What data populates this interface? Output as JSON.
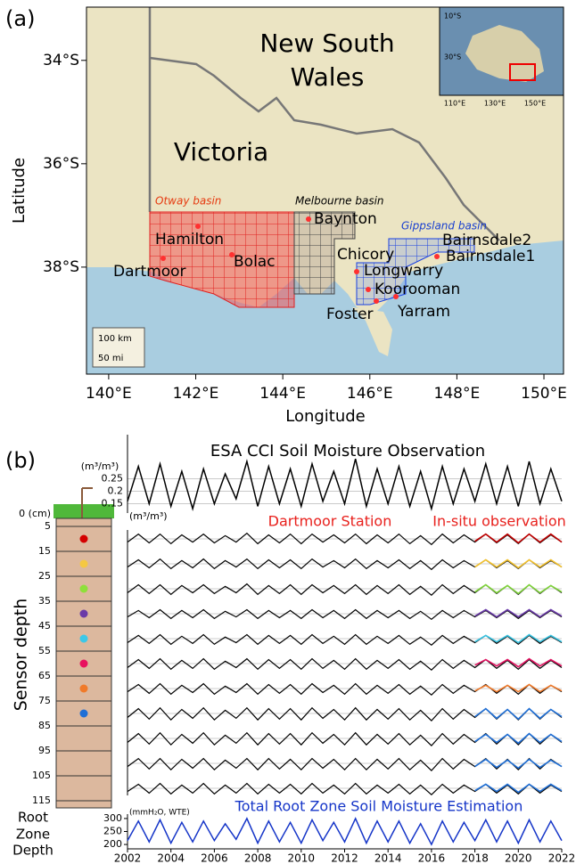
{
  "panel_a": {
    "label": "(a)",
    "xlabel": "Longitude",
    "ylabel": "Latitude",
    "xlim": [
      139.49,
      150.45
    ],
    "ylim": [
      -32.97,
      -40.07
    ],
    "xticks": [
      {
        "value": 140,
        "label": "140°E"
      },
      {
        "value": 142,
        "label": "142°E"
      },
      {
        "value": 144,
        "label": "144°E"
      },
      {
        "value": 146,
        "label": "146°E"
      },
      {
        "value": 148,
        "label": "148°E"
      },
      {
        "value": 150,
        "label": "150°E"
      }
    ],
    "yticks": [
      {
        "value": -34,
        "label": "34°S"
      },
      {
        "value": -36,
        "label": "36°S"
      },
      {
        "value": -38,
        "label": "38°S"
      }
    ],
    "nsw_label": [
      "New South",
      "Wales"
    ],
    "victoria_label": "Victoria",
    "basins": [
      "Otway basin",
      "Melbourne basin",
      "Gippsland basin"
    ],
    "stations": [
      "Hamilton",
      "Bolac",
      "Dartmoor",
      "Baynton",
      "Chicory",
      "Longwarry",
      "Koorooman",
      "Foster",
      "Yarram",
      "Bairnsdale2",
      "Bairnsdale1"
    ],
    "scale_bar": [
      "100 km",
      "50 mi"
    ],
    "inset_yticks": [
      "10°S",
      "30°S"
    ],
    "inset_xticks": [
      "110°E",
      "130°E",
      "150°E"
    ]
  },
  "panel_b": {
    "label": "(b)",
    "title": "ESA CCI Soil Moisture Observation",
    "esa_unit": "(m³/m³)",
    "xlim": [
      2002,
      2022
    ],
    "xticks": [
      2002,
      2004,
      2006,
      2008,
      2010,
      2012,
      2014,
      2016,
      2018,
      2020,
      2022
    ],
    "x": [
      2002,
      2002.5,
      2003,
      2003.5,
      2004,
      2004.5,
      2005,
      2005.5,
      2006,
      2006.5,
      2007,
      2007.5,
      2008,
      2008.5,
      2009,
      2009.5,
      2010,
      2010.5,
      2011,
      2011.5,
      2012,
      2012.5,
      2013,
      2013.5,
      2014,
      2014.5,
      2015,
      2015.5,
      2016,
      2016.5,
      2017,
      2017.5,
      2018,
      2018.5,
      2019,
      2019.5,
      2020,
      2020.5,
      2021,
      2021.5,
      2022
    ],
    "esa": {
      "ylim": [
        0.12,
        0.42
      ],
      "yticks": [
        0.15,
        0.2,
        0.25
      ],
      "color": "#000000",
      "values": [
        0.16,
        0.3,
        0.15,
        0.31,
        0.14,
        0.28,
        0.13,
        0.29,
        0.15,
        0.27,
        0.17,
        0.32,
        0.14,
        0.3,
        0.15,
        0.29,
        0.14,
        0.31,
        0.16,
        0.28,
        0.15,
        0.33,
        0.14,
        0.29,
        0.15,
        0.3,
        0.14,
        0.28,
        0.13,
        0.3,
        0.15,
        0.29,
        0.16,
        0.31,
        0.15,
        0.3,
        0.14,
        0.32,
        0.15,
        0.29,
        0.16
      ]
    },
    "station": "Dartmoor Station",
    "insitu_label": "In-situ observation",
    "rows_unit": "(m³/m³)",
    "ylabel": "Sensor depth",
    "depth_ticks": [
      {
        "value": 0,
        "label": "0 (cm)"
      },
      5,
      15,
      25,
      35,
      45,
      55,
      65,
      75,
      85,
      95,
      105,
      115
    ],
    "sensor_colors": [
      "#d40000",
      "#f5c842",
      "#8ee03a",
      "#6a3aa8",
      "#3cc8e8",
      "#e8115f",
      "#f07a2a",
      "#1f6fd6"
    ],
    "rows_ylim": [
      0,
      1
    ],
    "insitu_x": [
      2018,
      2018.5,
      2019,
      2019.5,
      2020,
      2020.5,
      2021,
      2021.5,
      2022
    ],
    "rows": [
      {
        "color": "#c00000",
        "values": [
          0.3,
          0.8,
          0.25,
          0.8,
          0.2,
          0.75,
          0.3,
          0.8,
          0.25,
          0.7,
          0.3,
          0.85,
          0.2,
          0.75,
          0.25,
          0.8,
          0.2,
          0.8,
          0.3,
          0.75,
          0.25,
          0.8,
          0.2,
          0.75,
          0.25,
          0.8,
          0.2,
          0.7,
          0.15,
          0.8,
          0.25,
          0.75,
          0.3,
          0.8,
          0.25,
          0.75,
          0.2,
          0.8,
          0.25,
          0.75,
          0.3
        ],
        "insitu": [
          0.35,
          0.8,
          0.3,
          0.8,
          0.25,
          0.8,
          0.3,
          0.8,
          0.3
        ]
      },
      {
        "color": "#f2c12e",
        "values": [
          0.3,
          0.75,
          0.25,
          0.8,
          0.2,
          0.7,
          0.25,
          0.8,
          0.2,
          0.7,
          0.3,
          0.8,
          0.2,
          0.75,
          0.25,
          0.75,
          0.2,
          0.8,
          0.3,
          0.7,
          0.25,
          0.8,
          0.2,
          0.7,
          0.25,
          0.75,
          0.2,
          0.7,
          0.15,
          0.75,
          0.25,
          0.7,
          0.3,
          0.75,
          0.25,
          0.7,
          0.2,
          0.75,
          0.25,
          0.7,
          0.3
        ],
        "insitu": [
          0.3,
          0.75,
          0.3,
          0.75,
          0.25,
          0.75,
          0.3,
          0.75,
          0.3
        ]
      },
      {
        "color": "#7fd33a",
        "values": [
          0.25,
          0.75,
          0.2,
          0.75,
          0.15,
          0.7,
          0.25,
          0.75,
          0.2,
          0.65,
          0.25,
          0.8,
          0.15,
          0.7,
          0.2,
          0.75,
          0.15,
          0.75,
          0.25,
          0.7,
          0.2,
          0.75,
          0.15,
          0.7,
          0.2,
          0.75,
          0.15,
          0.65,
          0.1,
          0.75,
          0.2,
          0.7,
          0.25,
          0.75,
          0.2,
          0.7,
          0.15,
          0.75,
          0.2,
          0.7,
          0.25
        ],
        "insitu": [
          0.3,
          0.75,
          0.25,
          0.7,
          0.2,
          0.75,
          0.25,
          0.7,
          0.3
        ]
      },
      {
        "color": "#6a3aa8",
        "values": [
          0.3,
          0.7,
          0.25,
          0.75,
          0.2,
          0.7,
          0.25,
          0.75,
          0.2,
          0.65,
          0.3,
          0.75,
          0.2,
          0.7,
          0.25,
          0.7,
          0.2,
          0.75,
          0.25,
          0.7,
          0.2,
          0.75,
          0.2,
          0.7,
          0.25,
          0.7,
          0.2,
          0.65,
          0.15,
          0.7,
          0.25,
          0.7,
          0.3,
          0.7,
          0.25,
          0.7,
          0.2,
          0.7,
          0.25,
          0.7,
          0.3
        ],
        "insitu": [
          0.35,
          0.75,
          0.3,
          0.75,
          0.3,
          0.75,
          0.3,
          0.75,
          0.35
        ]
      },
      {
        "color": "#37c2e0",
        "values": [
          0.25,
          0.7,
          0.2,
          0.75,
          0.15,
          0.65,
          0.2,
          0.75,
          0.15,
          0.6,
          0.25,
          0.75,
          0.15,
          0.7,
          0.2,
          0.7,
          0.15,
          0.75,
          0.2,
          0.65,
          0.15,
          0.75,
          0.15,
          0.65,
          0.2,
          0.7,
          0.15,
          0.6,
          0.1,
          0.7,
          0.2,
          0.65,
          0.25,
          0.7,
          0.2,
          0.65,
          0.15,
          0.7,
          0.2,
          0.65,
          0.25
        ],
        "insitu": [
          0.3,
          0.7,
          0.3,
          0.7,
          0.25,
          0.75,
          0.3,
          0.7,
          0.3
        ]
      },
      {
        "color": "#e0115f",
        "values": [
          0.25,
          0.75,
          0.2,
          0.8,
          0.15,
          0.7,
          0.2,
          0.8,
          0.15,
          0.65,
          0.25,
          0.8,
          0.15,
          0.75,
          0.2,
          0.75,
          0.15,
          0.8,
          0.2,
          0.7,
          0.15,
          0.8,
          0.15,
          0.7,
          0.2,
          0.75,
          0.15,
          0.65,
          0.1,
          0.75,
          0.2,
          0.7,
          0.25,
          0.75,
          0.2,
          0.7,
          0.15,
          0.75,
          0.2,
          0.7,
          0.25
        ],
        "insitu": [
          0.4,
          0.75,
          0.35,
          0.75,
          0.3,
          0.8,
          0.35,
          0.75,
          0.35
        ]
      },
      {
        "color": "#f07a2a",
        "values": [
          0.3,
          0.75,
          0.2,
          0.8,
          0.15,
          0.7,
          0.25,
          0.8,
          0.15,
          0.65,
          0.25,
          0.8,
          0.15,
          0.75,
          0.2,
          0.75,
          0.15,
          0.8,
          0.25,
          0.7,
          0.15,
          0.8,
          0.15,
          0.7,
          0.2,
          0.75,
          0.15,
          0.65,
          0.1,
          0.75,
          0.2,
          0.7,
          0.3,
          0.75,
          0.2,
          0.7,
          0.15,
          0.75,
          0.2,
          0.7,
          0.3
        ],
        "insitu": [
          0.35,
          0.7,
          0.3,
          0.7,
          0.3,
          0.75,
          0.3,
          0.7,
          0.35
        ]
      },
      {
        "color": "#1f6fd6",
        "values": [
          0.25,
          0.8,
          0.15,
          0.85,
          0.1,
          0.75,
          0.2,
          0.85,
          0.1,
          0.7,
          0.2,
          0.85,
          0.1,
          0.8,
          0.15,
          0.8,
          0.1,
          0.85,
          0.2,
          0.75,
          0.1,
          0.85,
          0.1,
          0.75,
          0.15,
          0.8,
          0.1,
          0.7,
          0.05,
          0.8,
          0.15,
          0.75,
          0.25,
          0.8,
          0.15,
          0.75,
          0.1,
          0.8,
          0.15,
          0.75,
          0.25
        ],
        "insitu": [
          0.3,
          0.8,
          0.2,
          0.75,
          0.15,
          0.8,
          0.2,
          0.75,
          0.3
        ]
      },
      {
        "color": "#1f6fd6",
        "values": [
          0.25,
          0.8,
          0.15,
          0.85,
          0.1,
          0.75,
          0.2,
          0.85,
          0.1,
          0.7,
          0.2,
          0.85,
          0.1,
          0.8,
          0.15,
          0.8,
          0.1,
          0.85,
          0.2,
          0.75,
          0.1,
          0.85,
          0.1,
          0.75,
          0.15,
          0.8,
          0.1,
          0.7,
          0.05,
          0.8,
          0.15,
          0.75,
          0.25,
          0.8,
          0.15,
          0.75,
          0.1,
          0.8,
          0.15,
          0.75,
          0.25
        ],
        "insitu": [
          0.3,
          0.75,
          0.25,
          0.75,
          0.2,
          0.8,
          0.25,
          0.75,
          0.3
        ]
      },
      {
        "color": "#1f6fd6",
        "values": [
          0.3,
          0.8,
          0.15,
          0.8,
          0.1,
          0.75,
          0.2,
          0.8,
          0.1,
          0.7,
          0.2,
          0.8,
          0.1,
          0.8,
          0.15,
          0.75,
          0.1,
          0.8,
          0.2,
          0.75,
          0.1,
          0.8,
          0.1,
          0.75,
          0.15,
          0.8,
          0.1,
          0.7,
          0.05,
          0.8,
          0.15,
          0.75,
          0.3,
          0.8,
          0.15,
          0.75,
          0.1,
          0.8,
          0.15,
          0.75,
          0.3
        ],
        "insitu": [
          0.3,
          0.75,
          0.25,
          0.7,
          0.2,
          0.75,
          0.25,
          0.7,
          0.3
        ]
      },
      {
        "color": "#1f6fd6",
        "values": [
          0.3,
          0.75,
          0.2,
          0.8,
          0.15,
          0.7,
          0.2,
          0.8,
          0.15,
          0.7,
          0.2,
          0.8,
          0.15,
          0.75,
          0.2,
          0.75,
          0.15,
          0.8,
          0.2,
          0.7,
          0.15,
          0.8,
          0.15,
          0.7,
          0.2,
          0.75,
          0.15,
          0.7,
          0.1,
          0.75,
          0.2,
          0.7,
          0.3,
          0.75,
          0.2,
          0.7,
          0.15,
          0.75,
          0.2,
          0.7,
          0.3
        ],
        "insitu": [
          0.35,
          0.75,
          0.3,
          0.75,
          0.25,
          0.75,
          0.3,
          0.75,
          0.35
        ]
      }
    ],
    "root": {
      "title": "Total Root Zone Soil Moisture Estimation",
      "unit": "(mmH₂O, WTE)",
      "label": [
        "Root",
        "Zone",
        "Depth"
      ],
      "ylim": [
        190,
        310
      ],
      "yticks": [
        200,
        250,
        300
      ],
      "color": "#1535c8",
      "values": [
        215,
        290,
        210,
        295,
        205,
        285,
        210,
        290,
        215,
        280,
        220,
        300,
        205,
        290,
        210,
        285,
        205,
        295,
        215,
        285,
        210,
        300,
        205,
        290,
        210,
        290,
        205,
        280,
        200,
        290,
        210,
        285,
        215,
        295,
        210,
        290,
        205,
        295,
        210,
        290,
        215
      ]
    }
  }
}
